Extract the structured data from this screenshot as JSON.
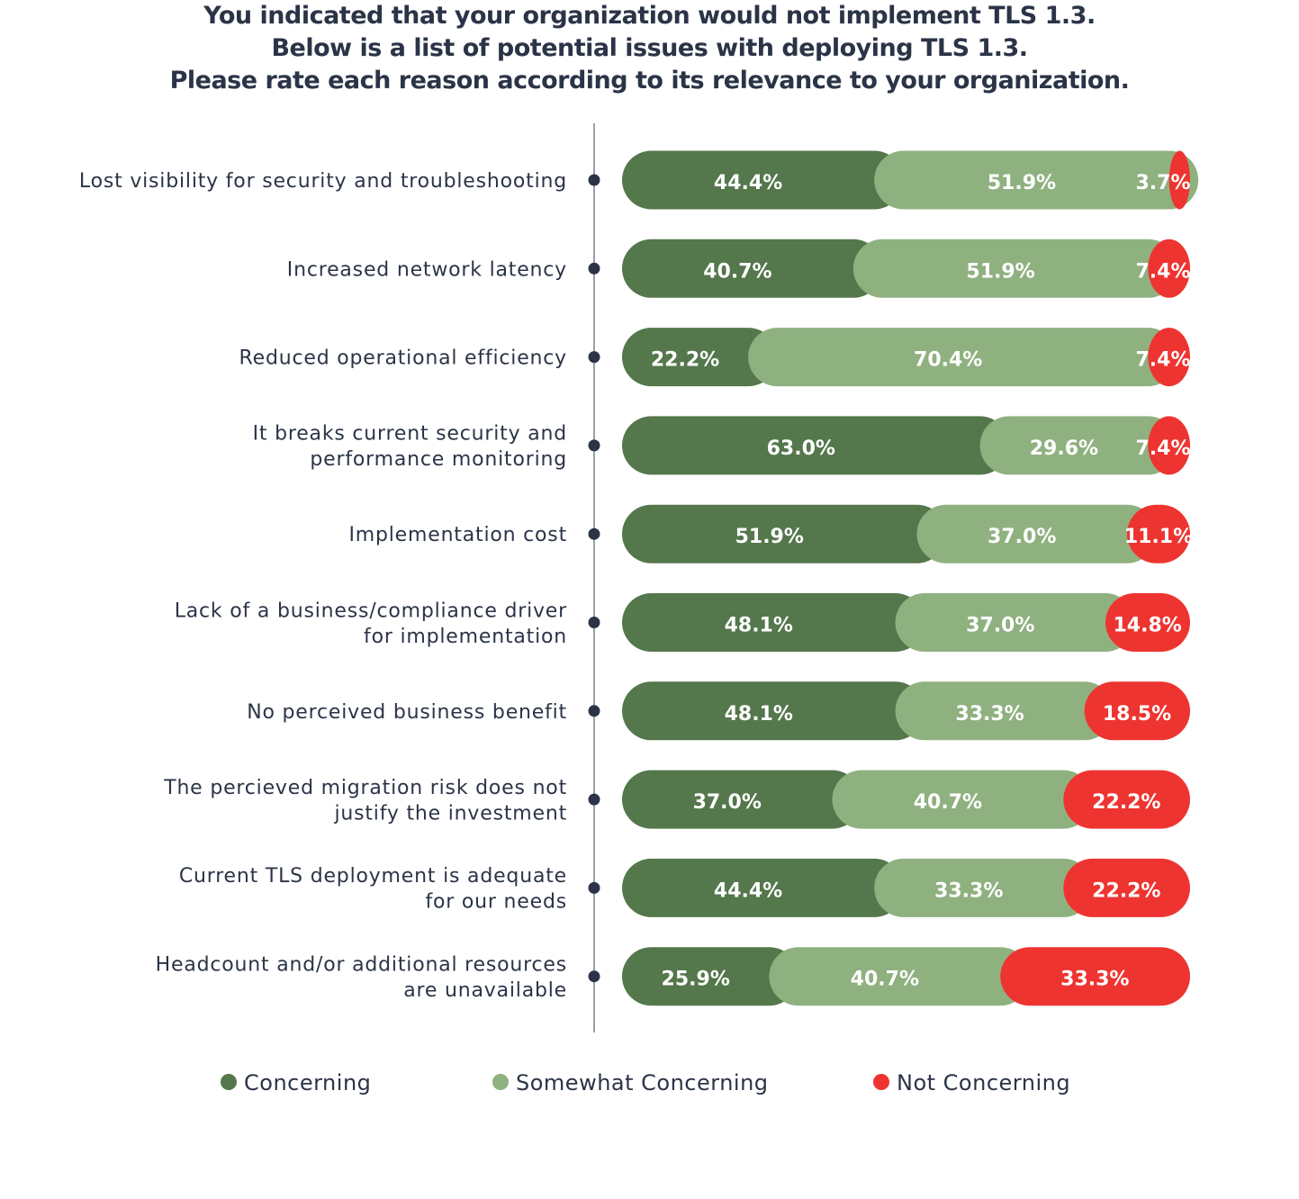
{
  "chart_data": {
    "type": "bar",
    "orientation": "horizontal",
    "stacked": true,
    "title": [
      "You indicated that your organization would not implement TLS 1.3.",
      "Below is a list of potential issues with deploying TLS 1.3.",
      "Please rate each reason according to its relevance to your organization."
    ],
    "categories": [
      [
        "Lost visibility for security and troubleshooting"
      ],
      [
        "Increased network latency"
      ],
      [
        "Reduced operational efficiency"
      ],
      [
        "It breaks current security and",
        "performance monitoring"
      ],
      [
        "Implementation cost"
      ],
      [
        "Lack of a business/compliance driver",
        "for implementation"
      ],
      [
        "No perceived business benefit"
      ],
      [
        "The percieved migration risk does not",
        "justify the investment"
      ],
      [
        "Current TLS deployment is adequate",
        "for our needs"
      ],
      [
        "Headcount and/or additional resources",
        "are unavailable"
      ]
    ],
    "series": [
      {
        "name": "Concerning",
        "color": "#54774b",
        "values": [
          44.4,
          40.7,
          22.2,
          63.0,
          51.9,
          48.1,
          48.1,
          37.0,
          44.4,
          25.9
        ]
      },
      {
        "name": "Somewhat Concerning",
        "color": "#8fb180",
        "values": [
          51.9,
          51.9,
          70.4,
          29.6,
          37.0,
          37.0,
          33.3,
          40.7,
          33.3,
          40.7
        ]
      },
      {
        "name": "Not Concerning",
        "color": "#ee3430",
        "values": [
          3.7,
          7.4,
          7.4,
          7.4,
          11.1,
          14.8,
          18.5,
          22.2,
          22.2,
          33.3
        ]
      }
    ],
    "value_format": "%",
    "xlim": [
      0,
      100
    ],
    "legend_position": "bottom",
    "grid": false
  }
}
